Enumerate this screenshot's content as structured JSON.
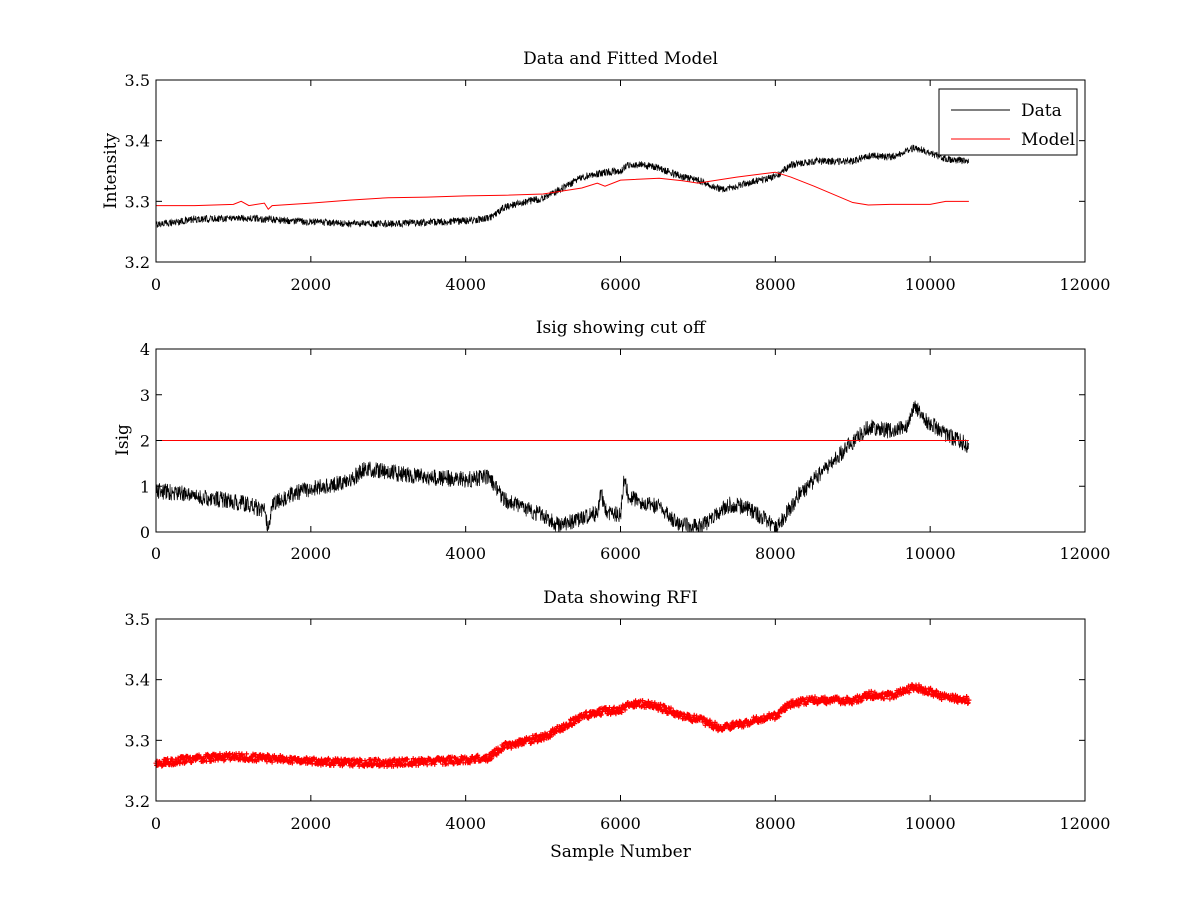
{
  "figure": {
    "background": "#ffffff"
  },
  "chart_data": [
    {
      "type": "line",
      "title": "Data and Fitted Model",
      "xlabel": "",
      "ylabel": "Intensity",
      "xlim": [
        0,
        12000
      ],
      "ylim": [
        3.2,
        3.5
      ],
      "xticks": [
        "0",
        "2000",
        "4000",
        "6000",
        "8000",
        "10000",
        "12000"
      ],
      "yticks": [
        "3.2",
        "3.3",
        "3.4",
        "3.5"
      ],
      "grid": false,
      "legend_position": "top-right",
      "series": [
        {
          "name": "Data",
          "color": "#000000",
          "style": "noisy-line",
          "noise": 0.006,
          "x": [
            0,
            500,
            1000,
            1500,
            2000,
            2500,
            3000,
            3500,
            4000,
            4300,
            4500,
            4800,
            5000,
            5300,
            5500,
            5800,
            6000,
            6100,
            6300,
            6500,
            6800,
            7000,
            7300,
            7500,
            7800,
            8000,
            8200,
            8500,
            9000,
            9200,
            9500,
            9800,
            10000,
            10200,
            10500
          ],
          "y": [
            3.262,
            3.27,
            3.273,
            3.27,
            3.266,
            3.263,
            3.263,
            3.265,
            3.268,
            3.272,
            3.29,
            3.3,
            3.305,
            3.325,
            3.34,
            3.348,
            3.35,
            3.36,
            3.36,
            3.355,
            3.34,
            3.335,
            3.32,
            3.325,
            3.335,
            3.34,
            3.36,
            3.366,
            3.366,
            3.375,
            3.373,
            3.388,
            3.38,
            3.37,
            3.366
          ]
        },
        {
          "name": "Model",
          "color": "#ff0000",
          "style": "line",
          "x": [
            0,
            500,
            1000,
            1100,
            1200,
            1400,
            1450,
            1500,
            2000,
            2500,
            3000,
            3500,
            4000,
            4500,
            5000,
            5500,
            5700,
            5800,
            6000,
            6500,
            6800,
            7000,
            7500,
            8000,
            8200,
            8500,
            9000,
            9200,
            9500,
            10000,
            10200,
            10500
          ],
          "y": [
            3.293,
            3.293,
            3.295,
            3.3,
            3.293,
            3.297,
            3.287,
            3.293,
            3.297,
            3.302,
            3.306,
            3.307,
            3.309,
            3.31,
            3.312,
            3.322,
            3.33,
            3.325,
            3.335,
            3.338,
            3.334,
            3.33,
            3.34,
            3.348,
            3.34,
            3.325,
            3.298,
            3.294,
            3.295,
            3.295,
            3.3,
            3.3
          ]
        }
      ]
    },
    {
      "type": "line",
      "title": "Isig showing cut off",
      "xlabel": "",
      "ylabel": "Isig",
      "xlim": [
        0,
        12000
      ],
      "ylim": [
        0,
        4
      ],
      "xticks": [
        "0",
        "2000",
        "4000",
        "6000",
        "8000",
        "10000",
        "12000"
      ],
      "yticks": [
        "0",
        "1",
        "2",
        "3",
        "4"
      ],
      "grid": false,
      "series": [
        {
          "color": "#000000",
          "style": "noisy-line",
          "noise": 0.18,
          "x": [
            0,
            300,
            600,
            900,
            1200,
            1400,
            1450,
            1500,
            1800,
            2000,
            2500,
            2700,
            3000,
            3500,
            4000,
            4300,
            4500,
            4800,
            5000,
            5200,
            5500,
            5700,
            5750,
            5800,
            6000,
            6050,
            6100,
            6300,
            6500,
            6700,
            6800,
            7000,
            7200,
            7400,
            7600,
            7800,
            8000,
            8100,
            8300,
            8600,
            8900,
            9200,
            9500,
            9700,
            9800,
            9900,
            10100,
            10300,
            10500
          ],
          "y": [
            0.9,
            0.85,
            0.75,
            0.7,
            0.6,
            0.45,
            0.1,
            0.6,
            0.85,
            0.95,
            1.1,
            1.4,
            1.3,
            1.2,
            1.15,
            1.2,
            0.7,
            0.5,
            0.35,
            0.15,
            0.3,
            0.4,
            0.9,
            0.45,
            0.35,
            1.2,
            0.75,
            0.65,
            0.55,
            0.25,
            0.15,
            0.1,
            0.3,
            0.6,
            0.55,
            0.35,
            0.1,
            0.3,
            0.8,
            1.3,
            1.8,
            2.3,
            2.2,
            2.35,
            2.75,
            2.5,
            2.25,
            2.05,
            1.9
          ]
        },
        {
          "color": "#ff0000",
          "style": "line",
          "x": [
            0,
            10500
          ],
          "y": [
            2,
            2
          ]
        }
      ]
    },
    {
      "type": "scatter",
      "title": "Data showing RFI",
      "xlabel": "Sample Number",
      "ylabel": "",
      "xlim": [
        0,
        12000
      ],
      "ylim": [
        3.2,
        3.5
      ],
      "xticks": [
        "0",
        "2000",
        "4000",
        "6000",
        "8000",
        "10000",
        "12000"
      ],
      "yticks": [
        "3.2",
        "3.3",
        "3.4",
        "3.5"
      ],
      "grid": false,
      "series": [
        {
          "color": "#ff0000",
          "style": "dense-markers",
          "noise": 0.006,
          "x": [
            0,
            500,
            1000,
            1500,
            2000,
            2500,
            3000,
            3500,
            4000,
            4300,
            4500,
            4800,
            5000,
            5300,
            5500,
            5800,
            6000,
            6100,
            6300,
            6500,
            6800,
            7000,
            7300,
            7500,
            7800,
            8000,
            8200,
            8500,
            9000,
            9200,
            9500,
            9800,
            10000,
            10200,
            10500
          ],
          "y": [
            3.262,
            3.27,
            3.273,
            3.27,
            3.266,
            3.263,
            3.263,
            3.265,
            3.268,
            3.272,
            3.29,
            3.3,
            3.305,
            3.325,
            3.34,
            3.348,
            3.35,
            3.36,
            3.36,
            3.355,
            3.34,
            3.335,
            3.32,
            3.325,
            3.335,
            3.34,
            3.36,
            3.366,
            3.366,
            3.375,
            3.373,
            3.388,
            3.38,
            3.37,
            3.366
          ]
        }
      ]
    }
  ]
}
